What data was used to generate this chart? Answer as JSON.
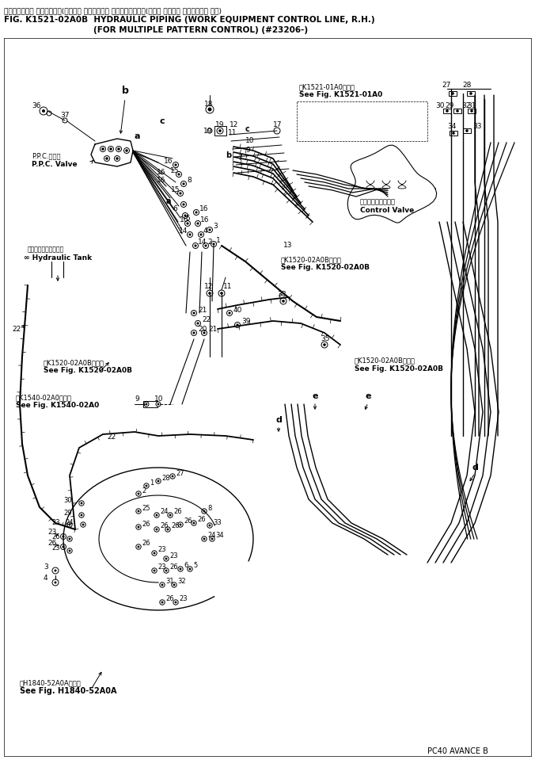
{
  "title_jp": "ハイドロリック パイピング　(右コック コントロール ライン、ミギ）　(マルチ パターン コントロール ヨウ)",
  "title_en": "FIG. K1521-02A0B  HYDRAULIC PIPING (WORK EQUIPMENT CONTROL LINE, R.H.)",
  "title_sub": "(FOR MULTIPLE PATTERN CONTROL) (#23206-)",
  "footer": "PC40 AVANCE B",
  "bg_color": "#ffffff",
  "line_color": "#000000",
  "text_color": "#000000",
  "font_size_title": 8.0,
  "font_size_label": 7.0,
  "font_size_number": 6.5,
  "font_size_ref": 6.0
}
